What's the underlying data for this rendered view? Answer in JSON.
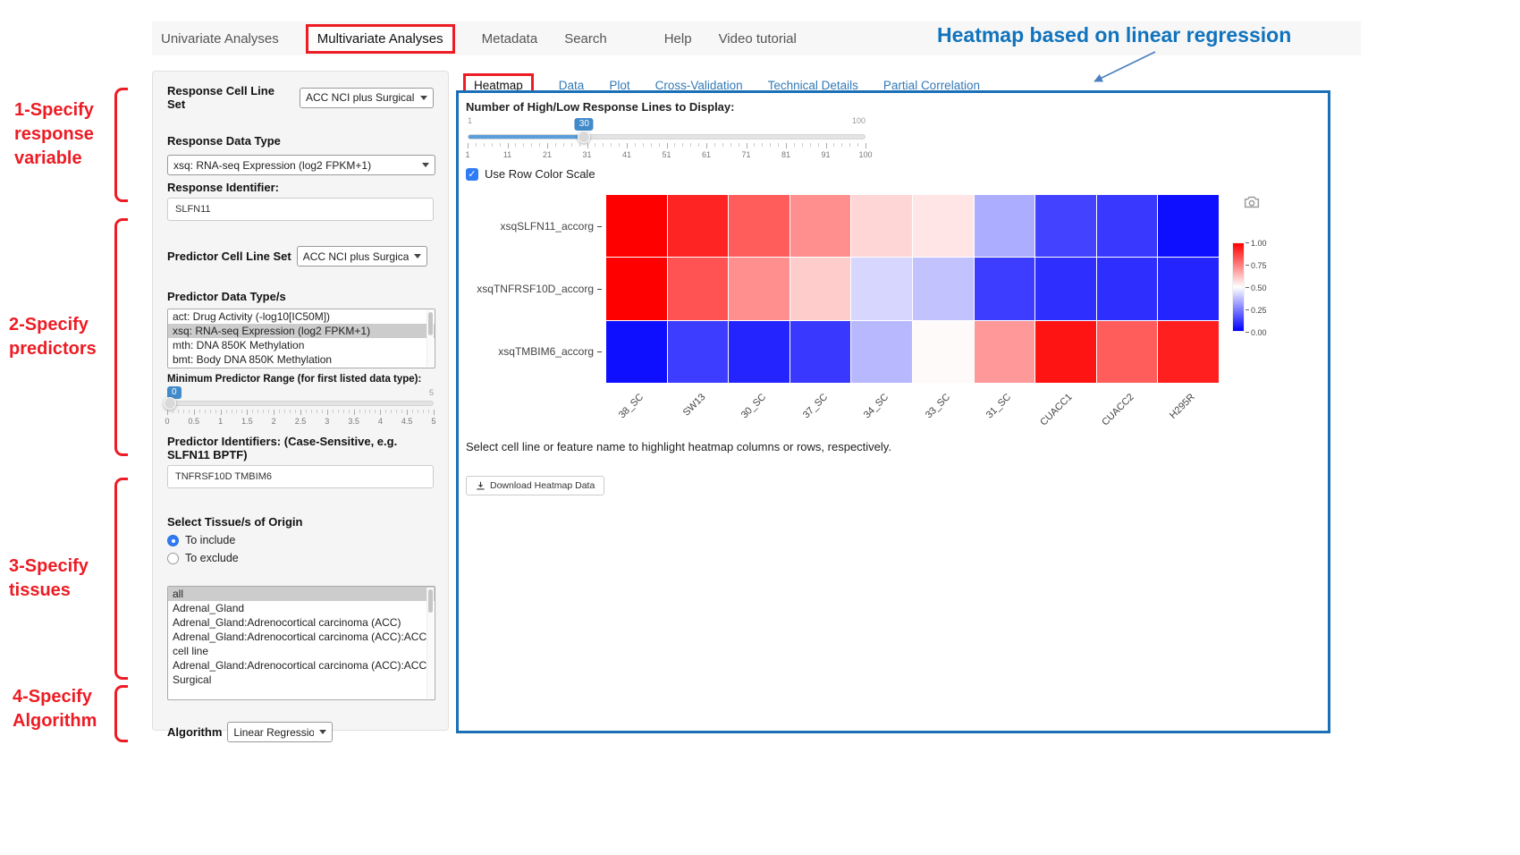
{
  "nav": {
    "items": [
      "Univariate Analyses",
      "Multivariate Analyses",
      "Metadata",
      "Search",
      "Help",
      "Video tutorial"
    ]
  },
  "annotations": {
    "heading": "Heatmap based on linear regression",
    "step1": "1-Specify response variable",
    "step2": "2-Specify predictors",
    "step3": "3-Specify tissues",
    "step4": "4-Specify Algorithm"
  },
  "sidebar": {
    "response_cell_line_set_label": "Response Cell Line Set",
    "response_cell_line_set_value": "ACC NCI plus Surgical",
    "response_data_type_label": "Response Data Type",
    "response_data_type_value": "xsq: RNA-seq Expression (log2 FPKM+1)",
    "response_identifier_label": "Response Identifier:",
    "response_identifier_value": "SLFN11",
    "predictor_cell_line_set_label": "Predictor Cell Line Set",
    "predictor_cell_line_set_value": "ACC NCI plus Surgical",
    "predictor_data_types_label": "Predictor Data Type/s",
    "predictor_data_types_options": [
      "act: Drug Activity (-log10[IC50M])",
      "xsq: RNA-seq Expression (log2 FPKM+1)",
      "mth: DNA 850K Methylation",
      "bmt: Body DNA 850K Methylation"
    ],
    "min_predictor_range_label": "Minimum Predictor Range (for first listed data type):",
    "min_range_slider": {
      "value": "0",
      "max_label": "5",
      "ticks": [
        "0",
        "0.5",
        "1",
        "1.5",
        "2",
        "2.5",
        "3",
        "3.5",
        "4",
        "4.5",
        "5"
      ]
    },
    "predictor_identifiers_label": "Predictor Identifiers: (Case-Sensitive, e.g. SLFN11 BPTF)",
    "predictor_identifiers_value": "TNFRSF10D TMBIM6",
    "tissue_origin_label": "Select Tissue/s of Origin",
    "tissue_radio_include": "To include",
    "tissue_radio_exclude": "To exclude",
    "tissue_options": [
      "all",
      "Adrenal_Gland",
      "Adrenal_Gland:Adrenocortical carcinoma (ACC)",
      "Adrenal_Gland:Adrenocortical carcinoma (ACC):ACC cell line",
      "Adrenal_Gland:Adrenocortical carcinoma (ACC):ACC Surgical"
    ],
    "algorithm_label": "Algorithm",
    "algorithm_value": "Linear Regression"
  },
  "main": {
    "tabs": [
      "Heatmap",
      "Data",
      "Plot",
      "Cross-Validation",
      "Technical Details",
      "Partial Correlation"
    ],
    "slider_label": "Number of High/Low Response Lines to Display:",
    "slider": {
      "min": "1",
      "max": "100",
      "value": "30",
      "ticks": [
        "1",
        "11",
        "21",
        "31",
        "41",
        "51",
        "61",
        "71",
        "81",
        "91",
        "100"
      ]
    },
    "row_color_scale_label": "Use Row Color Scale",
    "note": "Select cell line or feature name to highlight heatmap columns or rows, respectively.",
    "download_button_label": "Download Heatmap Data"
  },
  "icons": {
    "check": "✓",
    "camera_icon": "plot-snapshot-camera",
    "download_icon": "download-arrow",
    "chevron_down_icon": "dropdown-caret"
  },
  "colors": {
    "annotation_red": "#ed1c24",
    "annotation_blue": "#1173bc",
    "panel_border_blue": "#1a6fb5",
    "link_blue": "#337ab7",
    "slider_blue": "#428bca",
    "checkbox_blue": "#2f7cf6"
  },
  "chart_data": {
    "type": "heatmap",
    "title": "",
    "rows": [
      "xsqSLFN11_accorg",
      "xsqTNFRSF10D_accorg",
      "xsqTMBIM6_accorg"
    ],
    "columns": [
      "38_SC",
      "SW13",
      "30_SC",
      "37_SC",
      "34_SC",
      "33_SC",
      "31_SC",
      "CUACC1",
      "CUACC2",
      "H295R"
    ],
    "values": [
      [
        1.0,
        0.93,
        0.82,
        0.72,
        0.58,
        0.55,
        0.34,
        0.13,
        0.11,
        0.03
      ],
      [
        1.0,
        0.84,
        0.72,
        0.6,
        0.42,
        0.38,
        0.12,
        0.09,
        0.09,
        0.07
      ],
      [
        0.03,
        0.12,
        0.07,
        0.11,
        0.36,
        0.51,
        0.7,
        0.96,
        0.82,
        0.94
      ]
    ],
    "value_range": [
      0,
      1
    ],
    "colorbar_ticks": [
      "1.00",
      "0.75",
      "0.50",
      "0.25",
      "0.00"
    ],
    "colorscale": {
      "high": "#ff0000",
      "mid": "#ffffff",
      "low": "#0000ff"
    },
    "legend_position": "right"
  }
}
